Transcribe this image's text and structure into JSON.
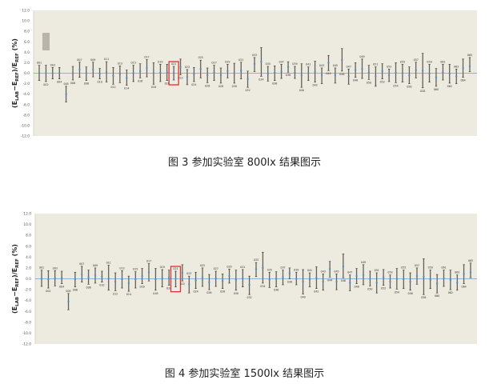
{
  "figures": [
    {
      "caption": "图 3  参加实验室 800lx 结果图示",
      "chart_data": {
        "type": "scatter",
        "error_bars": true,
        "ylabel": {
          "open": "(E",
          "sub1": "LAB",
          "mid": "−E",
          "sub2": "REF",
          "slash": ")/E",
          "sub3": "REF",
          "unit": " (%)"
        },
        "ylim": [
          -12,
          12
        ],
        "yticks": [
          "12.0",
          "10.0",
          "8.0",
          "6.0",
          "4.0",
          "2.0",
          "0.0",
          "-2.0",
          "-4.0",
          "-6.0",
          "-8.0",
          "-10.0",
          "-12.0"
        ],
        "reference_line": 0,
        "highlighted_point": "021",
        "legend_swatch": true,
        "colors": {
          "background": "#edeae0",
          "point": "#4a90d9",
          "bar": "#333333",
          "highlight": "#e03030",
          "axis_line": "#6f9fd8",
          "legend_swatch": "#b9b5ad"
        },
        "points": [
          [
            0.0,
            -1.4,
            1.5
          ],
          [
            0.0,
            -1.6,
            1.5
          ],
          [
            0.0,
            -1.1,
            1.1
          ],
          [
            0.0,
            -1.1,
            1.1
          ],
          [
            -4.0,
            -5.5,
            -2.5
          ],
          [
            0.0,
            -1.3,
            1.3
          ],
          [
            0.7,
            -0.8,
            2.1
          ],
          [
            0.0,
            -1.4,
            1.2
          ],
          [
            0.7,
            -0.7,
            2.1
          ],
          [
            -0.1,
            -1.1,
            0.9
          ],
          [
            0.2,
            -1.7,
            2.2
          ],
          [
            -0.5,
            -2.1,
            1.1
          ],
          [
            -0.2,
            -1.8,
            1.4
          ],
          [
            -0.9,
            -2.3,
            0.6
          ],
          [
            0.0,
            -1.6,
            1.5
          ],
          [
            0.4,
            -0.9,
            1.8
          ],
          [
            1.0,
            -0.7,
            2.6
          ],
          [
            0.0,
            -2.1,
            2.0
          ],
          [
            0.1,
            -1.6,
            1.7
          ],
          [
            0.2,
            -1.4,
            1.7
          ],
          [
            0.0,
            -1.3,
            1.3
          ],
          [
            1.2,
            -0.3,
            2.7
          ],
          [
            -0.7,
            -2.2,
            0.7
          ],
          [
            -0.2,
            -1.6,
            1.1
          ],
          [
            0.8,
            -0.9,
            2.5
          ],
          [
            -0.4,
            -1.8,
            1.0
          ],
          [
            0.1,
            -1.4,
            1.5
          ],
          [
            -0.4,
            -1.9,
            1.0
          ],
          [
            0.4,
            -0.9,
            1.7
          ],
          [
            0.0,
            -1.9,
            1.9
          ],
          [
            0.5,
            -1.1,
            2.1
          ],
          [
            -1.1,
            -2.7,
            0.4
          ],
          [
            1.8,
            0.3,
            3.0
          ],
          [
            2.2,
            -0.6,
            4.9
          ],
          [
            -0.1,
            -1.5,
            1.3
          ],
          [
            0.1,
            -1.4,
            1.4
          ],
          [
            0.3,
            -1.0,
            1.7
          ],
          [
            1.2,
            0.2,
            2.2
          ],
          [
            0.1,
            -1.0,
            1.3
          ],
          [
            -0.4,
            -2.7,
            1.8
          ],
          [
            0.0,
            -1.4,
            1.2
          ],
          [
            0.3,
            -1.7,
            2.3
          ],
          [
            -0.4,
            -2.0,
            1.0
          ],
          [
            2.0,
            0.5,
            3.4
          ],
          [
            -0.4,
            -1.9,
            1.0
          ],
          [
            2.5,
            0.4,
            4.7
          ],
          [
            -0.6,
            -2.1,
            0.8
          ],
          [
            0.6,
            -0.8,
            2.0
          ],
          [
            0.8,
            -1.0,
            2.7
          ],
          [
            0.1,
            -1.2,
            1.5
          ],
          [
            -0.6,
            -2.5,
            1.2
          ],
          [
            0.4,
            -1.1,
            1.8
          ],
          [
            -0.4,
            -1.6,
            0.8
          ],
          [
            0.1,
            -1.8,
            2.0
          ],
          [
            0.0,
            -1.7,
            1.7
          ],
          [
            -0.4,
            -2.0,
            1.2
          ],
          [
            0.6,
            -0.9,
            2.1
          ],
          [
            0.5,
            -2.8,
            3.8
          ],
          [
            -0.1,
            -1.7,
            1.7
          ],
          [
            -0.8,
            -2.5,
            0.9
          ],
          [
            0.2,
            -1.3,
            1.7
          ],
          [
            -0.1,
            -1.9,
            1.7
          ],
          [
            -0.6,
            -2.0,
            0.8
          ],
          [
            1.0,
            -0.8,
            2.7
          ],
          [
            1.3,
            0.3,
            3.0
          ]
        ]
      }
    },
    {
      "caption": "图 4  参加实验室 1500lx 结果图示",
      "chart_data": {
        "type": "scatter",
        "error_bars": true,
        "ylabel": {
          "open": "(E",
          "sub1": "LAB",
          "mid": "−E",
          "sub2": "REF",
          "slash": ")/E",
          "sub3": "REF",
          "unit": " (%)"
        },
        "ylim": [
          -12,
          12
        ],
        "yticks": [
          "12.0",
          "10.0",
          "8.0",
          "6.0",
          "4.0",
          "2.0",
          "0.0",
          "-2.0",
          "-4.0",
          "-6.0",
          "-8.0",
          "-10.0",
          "-12.0"
        ],
        "reference_line": 0,
        "highlighted_point": "021",
        "legend_swatch": false,
        "colors": {
          "background": "#edeae0",
          "point": "#4a90d9",
          "bar": "#333333",
          "highlight": "#e03030",
          "axis_line": "#6f9fd8"
        },
        "points": [
          [
            0.1,
            -1.4,
            1.6
          ],
          [
            -0.1,
            -1.7,
            1.5
          ],
          [
            0.1,
            -1.3,
            1.5
          ],
          [
            0.2,
            -0.9,
            1.4
          ],
          [
            -4.2,
            -5.7,
            -2.7
          ],
          [
            -0.1,
            -1.5,
            1.2
          ],
          [
            0.8,
            -0.6,
            2.3
          ],
          [
            0.3,
            -1.0,
            1.6
          ],
          [
            0.6,
            -0.8,
            2.0
          ],
          [
            0.4,
            -0.6,
            1.4
          ],
          [
            0.1,
            -2.1,
            2.5
          ],
          [
            -0.5,
            -2.2,
            1.1
          ],
          [
            -0.1,
            -1.7,
            1.5
          ],
          [
            -0.8,
            -2.3,
            0.5
          ],
          [
            -0.1,
            -1.7,
            1.3
          ],
          [
            0.5,
            -0.9,
            1.9
          ],
          [
            1.2,
            -0.4,
            2.8
          ],
          [
            -0.1,
            -2.1,
            1.9
          ],
          [
            0.1,
            -1.5,
            1.7
          ],
          [
            0.2,
            -1.2,
            1.6
          ],
          [
            0.0,
            -1.5,
            1.4
          ],
          [
            1.1,
            -0.4,
            2.6
          ],
          [
            -1.0,
            -2.6,
            0.5
          ],
          [
            -0.3,
            -1.8,
            1.2
          ],
          [
            0.3,
            -1.4,
            2.0
          ],
          [
            -0.6,
            -2.0,
            0.8
          ],
          [
            0.1,
            -1.4,
            1.4
          ],
          [
            -0.4,
            -1.8,
            0.9
          ],
          [
            0.5,
            -0.8,
            1.8
          ],
          [
            -0.2,
            -2.1,
            1.6
          ],
          [
            0.1,
            -1.5,
            1.7
          ],
          [
            -1.1,
            -2.9,
            0.5
          ],
          [
            1.8,
            0.4,
            3.0
          ],
          [
            2.0,
            -0.8,
            4.9
          ],
          [
            -0.2,
            -1.6,
            1.2
          ],
          [
            0.0,
            -1.5,
            1.3
          ],
          [
            0.3,
            -1.1,
            1.6
          ],
          [
            1.0,
            0.0,
            2.0
          ],
          [
            0.0,
            -1.1,
            1.2
          ],
          [
            -0.5,
            -2.8,
            1.7
          ],
          [
            -0.1,
            -1.5,
            1.1
          ],
          [
            0.2,
            -1.8,
            2.2
          ],
          [
            -0.5,
            -2.1,
            0.9
          ],
          [
            1.8,
            0.3,
            3.2
          ],
          [
            -0.5,
            -2.0,
            0.9
          ],
          [
            2.3,
            0.2,
            4.6
          ],
          [
            -0.7,
            -2.2,
            0.7
          ],
          [
            0.5,
            -0.9,
            1.9
          ],
          [
            0.7,
            -1.1,
            2.6
          ],
          [
            0.0,
            -1.3,
            1.4
          ],
          [
            -0.7,
            -2.6,
            1.1
          ],
          [
            0.3,
            -1.2,
            1.7
          ],
          [
            -0.5,
            -1.7,
            0.7
          ],
          [
            0.0,
            -1.9,
            1.9
          ],
          [
            -0.1,
            -1.8,
            1.6
          ],
          [
            -0.5,
            -2.1,
            1.1
          ],
          [
            0.5,
            -1.0,
            2.0
          ],
          [
            0.4,
            -2.9,
            3.7
          ],
          [
            -0.2,
            -1.8,
            1.6
          ],
          [
            -0.9,
            -2.6,
            0.8
          ],
          [
            0.1,
            -1.4,
            1.6
          ],
          [
            -0.2,
            -2.0,
            1.6
          ],
          [
            -0.7,
            -2.1,
            0.7
          ],
          [
            0.9,
            -0.9,
            2.6
          ],
          [
            1.2,
            0.2,
            2.9
          ]
        ]
      }
    }
  ]
}
